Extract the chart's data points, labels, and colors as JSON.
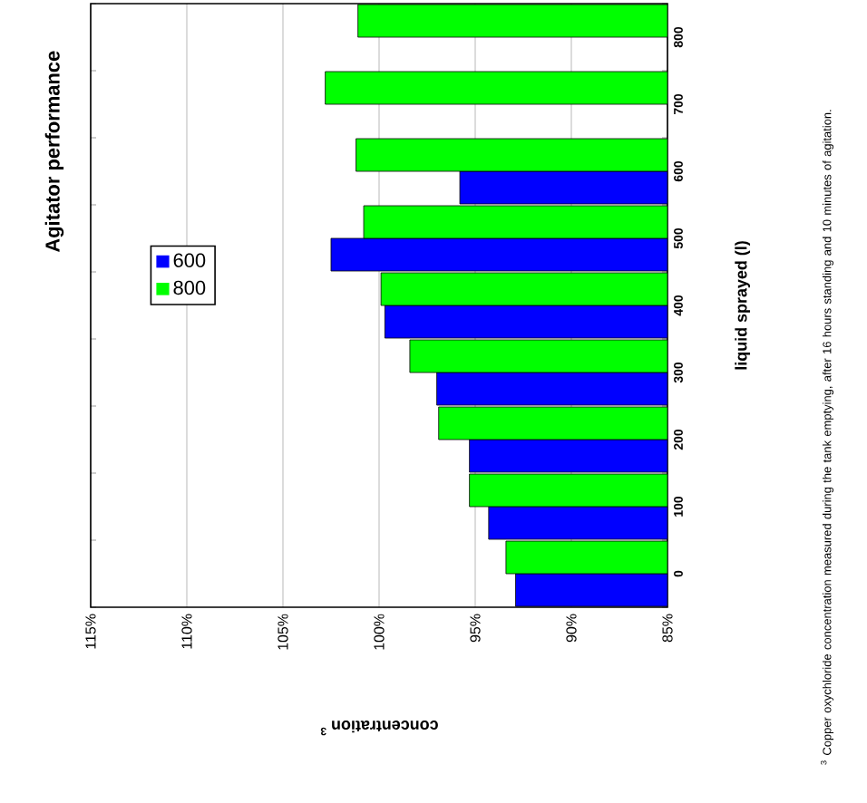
{
  "chart_data": {
    "type": "bar",
    "orientation": "horizontal",
    "title": "Agitator performance",
    "xlabel": "concentration $^{3}$",
    "ylabel": "liquid sprayed (l)",
    "categories": [
      "800",
      "700",
      "600",
      "500",
      "400",
      "300",
      "200",
      "100",
      "0"
    ],
    "series": [
      {
        "name": "600",
        "color": "#0000ff",
        "values": [
          null,
          null,
          95.8,
          102.5,
          99.7,
          97.0,
          95.3,
          94.3,
          92.9
        ]
      },
      {
        "name": "800",
        "color": "#00ff00",
        "values": [
          101.1,
          102.8,
          101.2,
          100.8,
          99.9,
          98.4,
          96.9,
          95.3,
          93.4
        ]
      }
    ],
    "xlim": [
      115,
      85
    ],
    "xticks": [
      {
        "value": 115,
        "label": "115%"
      },
      {
        "value": 110,
        "label": "110%"
      },
      {
        "value": 105,
        "label": "105%"
      },
      {
        "value": 100,
        "label": "100%"
      },
      {
        "value": 95,
        "label": "95%"
      },
      {
        "value": 90,
        "label": "90%"
      },
      {
        "value": 85,
        "label": "85%"
      }
    ],
    "grid": "x",
    "legend": "left",
    "annotations": [
      "$^{3}$ Copper oxychloride concentration measured during the tank emptying, after 16 hours standing and 10 minutes of agitation."
    ]
  }
}
